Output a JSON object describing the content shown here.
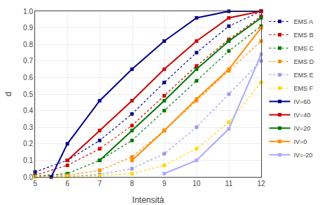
{
  "chart_data": {
    "type": "line",
    "xlabel": "Intensità",
    "ylabel": "d",
    "xlim": [
      5,
      12
    ],
    "ylim": [
      0,
      1
    ],
    "xticks": [
      5,
      6,
      7,
      8,
      9,
      10,
      11,
      12
    ],
    "yticks": [
      {
        "value": 0,
        "label": "0.0"
      },
      0.1,
      0.2,
      0.3,
      0.4,
      0.5,
      0.6,
      0.7,
      0.8,
      0.9,
      {
        "value": 1,
        "label": "1.0"
      }
    ],
    "grid": true,
    "legend": "right",
    "series": [
      {
        "name": "EMS A",
        "color": "#00008B",
        "line_style": "dotted",
        "marker": "square",
        "x": [
          5,
          6,
          7,
          8,
          9,
          10,
          11,
          12
        ],
        "values": [
          0.03,
          0.1,
          0.22,
          0.38,
          0.57,
          0.75,
          0.91,
          1.0
        ]
      },
      {
        "name": "EMS B",
        "color": "#CC0000",
        "line_style": "dotted",
        "marker": "square",
        "x": [
          5,
          6,
          7,
          8,
          9,
          10,
          11,
          12
        ],
        "values": [
          0.01,
          0.07,
          0.17,
          0.31,
          0.49,
          0.67,
          0.83,
          0.97
        ]
      },
      {
        "name": "EMS C",
        "color": "#007700",
        "line_style": "dotted",
        "marker": "square",
        "x": [
          5,
          6,
          7,
          8,
          9,
          10,
          11,
          12
        ],
        "values": [
          0.005,
          0.02,
          0.1,
          0.22,
          0.4,
          0.58,
          0.76,
          0.91
        ]
      },
      {
        "name": "EMS D",
        "color": "#FF8C00",
        "line_style": "dotted",
        "marker": "square",
        "x": [
          5,
          6,
          7,
          8,
          9,
          10,
          11,
          12
        ],
        "values": [
          0.002,
          0.01,
          0.04,
          0.12,
          0.28,
          0.46,
          0.64,
          0.82
        ]
      },
      {
        "name": "EMS E",
        "color": "#9999EE",
        "line_style": "dotted",
        "marker": "square",
        "x": [
          5,
          6,
          7,
          8,
          9,
          10,
          11,
          12
        ],
        "values": [
          0.001,
          0.004,
          0.015,
          0.05,
          0.14,
          0.3,
          0.5,
          0.7
        ]
      },
      {
        "name": "EMS F",
        "color": "#FFD700",
        "line_style": "dotted",
        "marker": "square",
        "x": [
          5,
          6,
          7,
          8,
          9,
          10,
          11,
          12
        ],
        "values": [
          0.0,
          0.002,
          0.007,
          0.02,
          0.07,
          0.17,
          0.33,
          0.57
        ]
      },
      {
        "name": "IV=60",
        "color": "#00008B",
        "line_style": "solid",
        "marker": "square",
        "x": [
          5.5,
          6.0,
          7.0,
          8.0,
          9.0,
          10.0,
          11.0,
          12.0
        ],
        "values": [
          0.0,
          0.2,
          0.46,
          0.65,
          0.82,
          0.96,
          1.0,
          1.0
        ]
      },
      {
        "name": "IV=40",
        "color": "#CC0000",
        "line_style": "solid",
        "marker": "square",
        "x": [
          6.0,
          7.0,
          8.0,
          9.0,
          10.0,
          11.0,
          12.0
        ],
        "values": [
          0.1,
          0.28,
          0.46,
          0.65,
          0.82,
          0.96,
          1.0
        ]
      },
      {
        "name": "IV=20",
        "color": "#007700",
        "line_style": "solid",
        "marker": "square",
        "x": [
          7.0,
          8.0,
          9.0,
          10.0,
          11.0,
          12.0
        ],
        "values": [
          0.1,
          0.28,
          0.46,
          0.65,
          0.82,
          0.96
        ]
      },
      {
        "name": "IV=0",
        "color": "#FF8C00",
        "line_style": "solid",
        "marker": "square",
        "x": [
          8.0,
          9.0,
          10.0,
          11.0,
          12.0
        ],
        "values": [
          0.1,
          0.28,
          0.47,
          0.65,
          0.9
        ]
      },
      {
        "name": "IV=-20",
        "color": "#AAAAFF",
        "line_style": "solid",
        "marker": "square",
        "x": [
          9.0,
          10.0,
          11.0,
          12.0
        ],
        "values": [
          0.02,
          0.1,
          0.29,
          0.74
        ]
      }
    ]
  }
}
